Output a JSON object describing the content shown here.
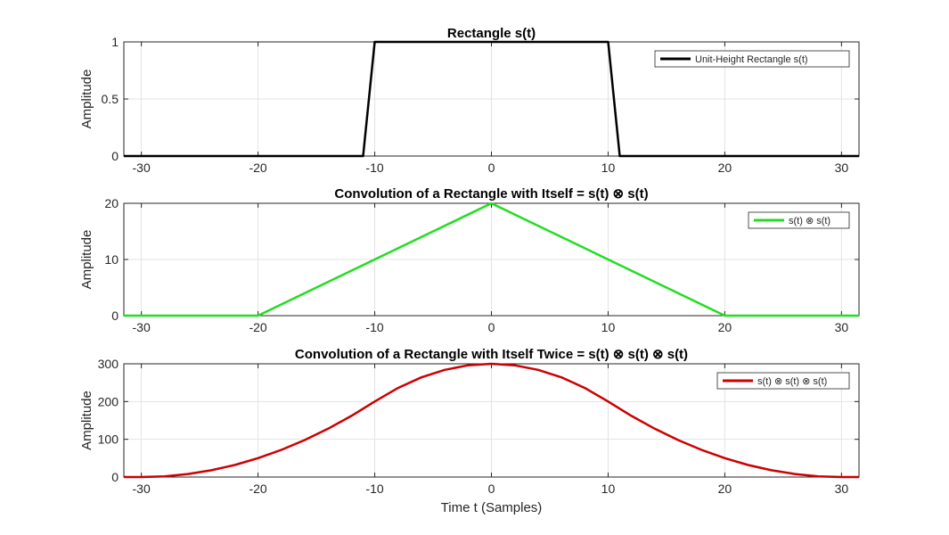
{
  "chart_data": [
    {
      "type": "line",
      "title": "Rectangle s(t)",
      "xlabel": "",
      "ylabel": "Amplitude",
      "xlim": [
        -31.5,
        31.5
      ],
      "ylim": [
        0,
        1
      ],
      "xticks": [
        -30,
        -20,
        -10,
        0,
        10,
        20,
        30
      ],
      "yticks": [
        0,
        0.5,
        1
      ],
      "ytick_labels": [
        "0",
        "0.5",
        "1"
      ],
      "grid": true,
      "legend_position": "top-right",
      "series": [
        {
          "name": "Unit-Height Rectangle s(t)",
          "color": "#000000",
          "x": [
            -31.5,
            -11,
            -10,
            10,
            11,
            31.5
          ],
          "y": [
            0,
            0,
            1,
            1,
            0,
            0
          ]
        }
      ]
    },
    {
      "type": "line",
      "title": "Convolution of a Rectangle with Itself = s(t) ⊗ s(t)",
      "xlabel": "",
      "ylabel": "Amplitude",
      "xlim": [
        -31.5,
        31.5
      ],
      "ylim": [
        0,
        20
      ],
      "xticks": [
        -30,
        -20,
        -10,
        0,
        10,
        20,
        30
      ],
      "yticks": [
        0,
        10,
        20
      ],
      "ytick_labels": [
        "0",
        "10",
        "20"
      ],
      "grid": true,
      "legend_position": "top-right",
      "series": [
        {
          "name": "s(t) ⊗ s(t)",
          "color": "#22dd22",
          "x": [
            -31.5,
            -20,
            0,
            20,
            31.5
          ],
          "y": [
            0,
            0,
            20,
            0,
            0
          ]
        }
      ]
    },
    {
      "type": "line",
      "title": "Convolution of a Rectangle with Itself Twice = s(t) ⊗ s(t) ⊗ s(t)",
      "xlabel": "Time t (Samples)",
      "ylabel": "Amplitude",
      "xlim": [
        -31.5,
        31.5
      ],
      "ylim": [
        0,
        300
      ],
      "xticks": [
        -30,
        -20,
        -10,
        0,
        10,
        20,
        30
      ],
      "yticks": [
        0,
        100,
        200,
        300
      ],
      "ytick_labels": [
        "0",
        "100",
        "200",
        "300"
      ],
      "grid": true,
      "legend_position": "top-right",
      "series": [
        {
          "name": "s(t) ⊗ s(t) ⊗ s(t)",
          "color": "#cc0000",
          "x": [
            -31.5,
            -30,
            -28,
            -26,
            -24,
            -22,
            -20,
            -18,
            -16,
            -14,
            -12,
            -10,
            -8,
            -6,
            -4,
            -2,
            0,
            2,
            4,
            6,
            8,
            10,
            12,
            14,
            16,
            18,
            20,
            22,
            24,
            26,
            28,
            30,
            31.5
          ],
          "y": [
            0,
            0,
            2,
            8,
            18,
            32,
            50,
            72,
            98,
            128,
            162,
            200,
            236,
            264,
            284,
            296,
            300,
            296,
            284,
            264,
            236,
            200,
            162,
            128,
            98,
            72,
            50,
            32,
            18,
            8,
            2,
            0,
            0
          ]
        }
      ]
    }
  ]
}
